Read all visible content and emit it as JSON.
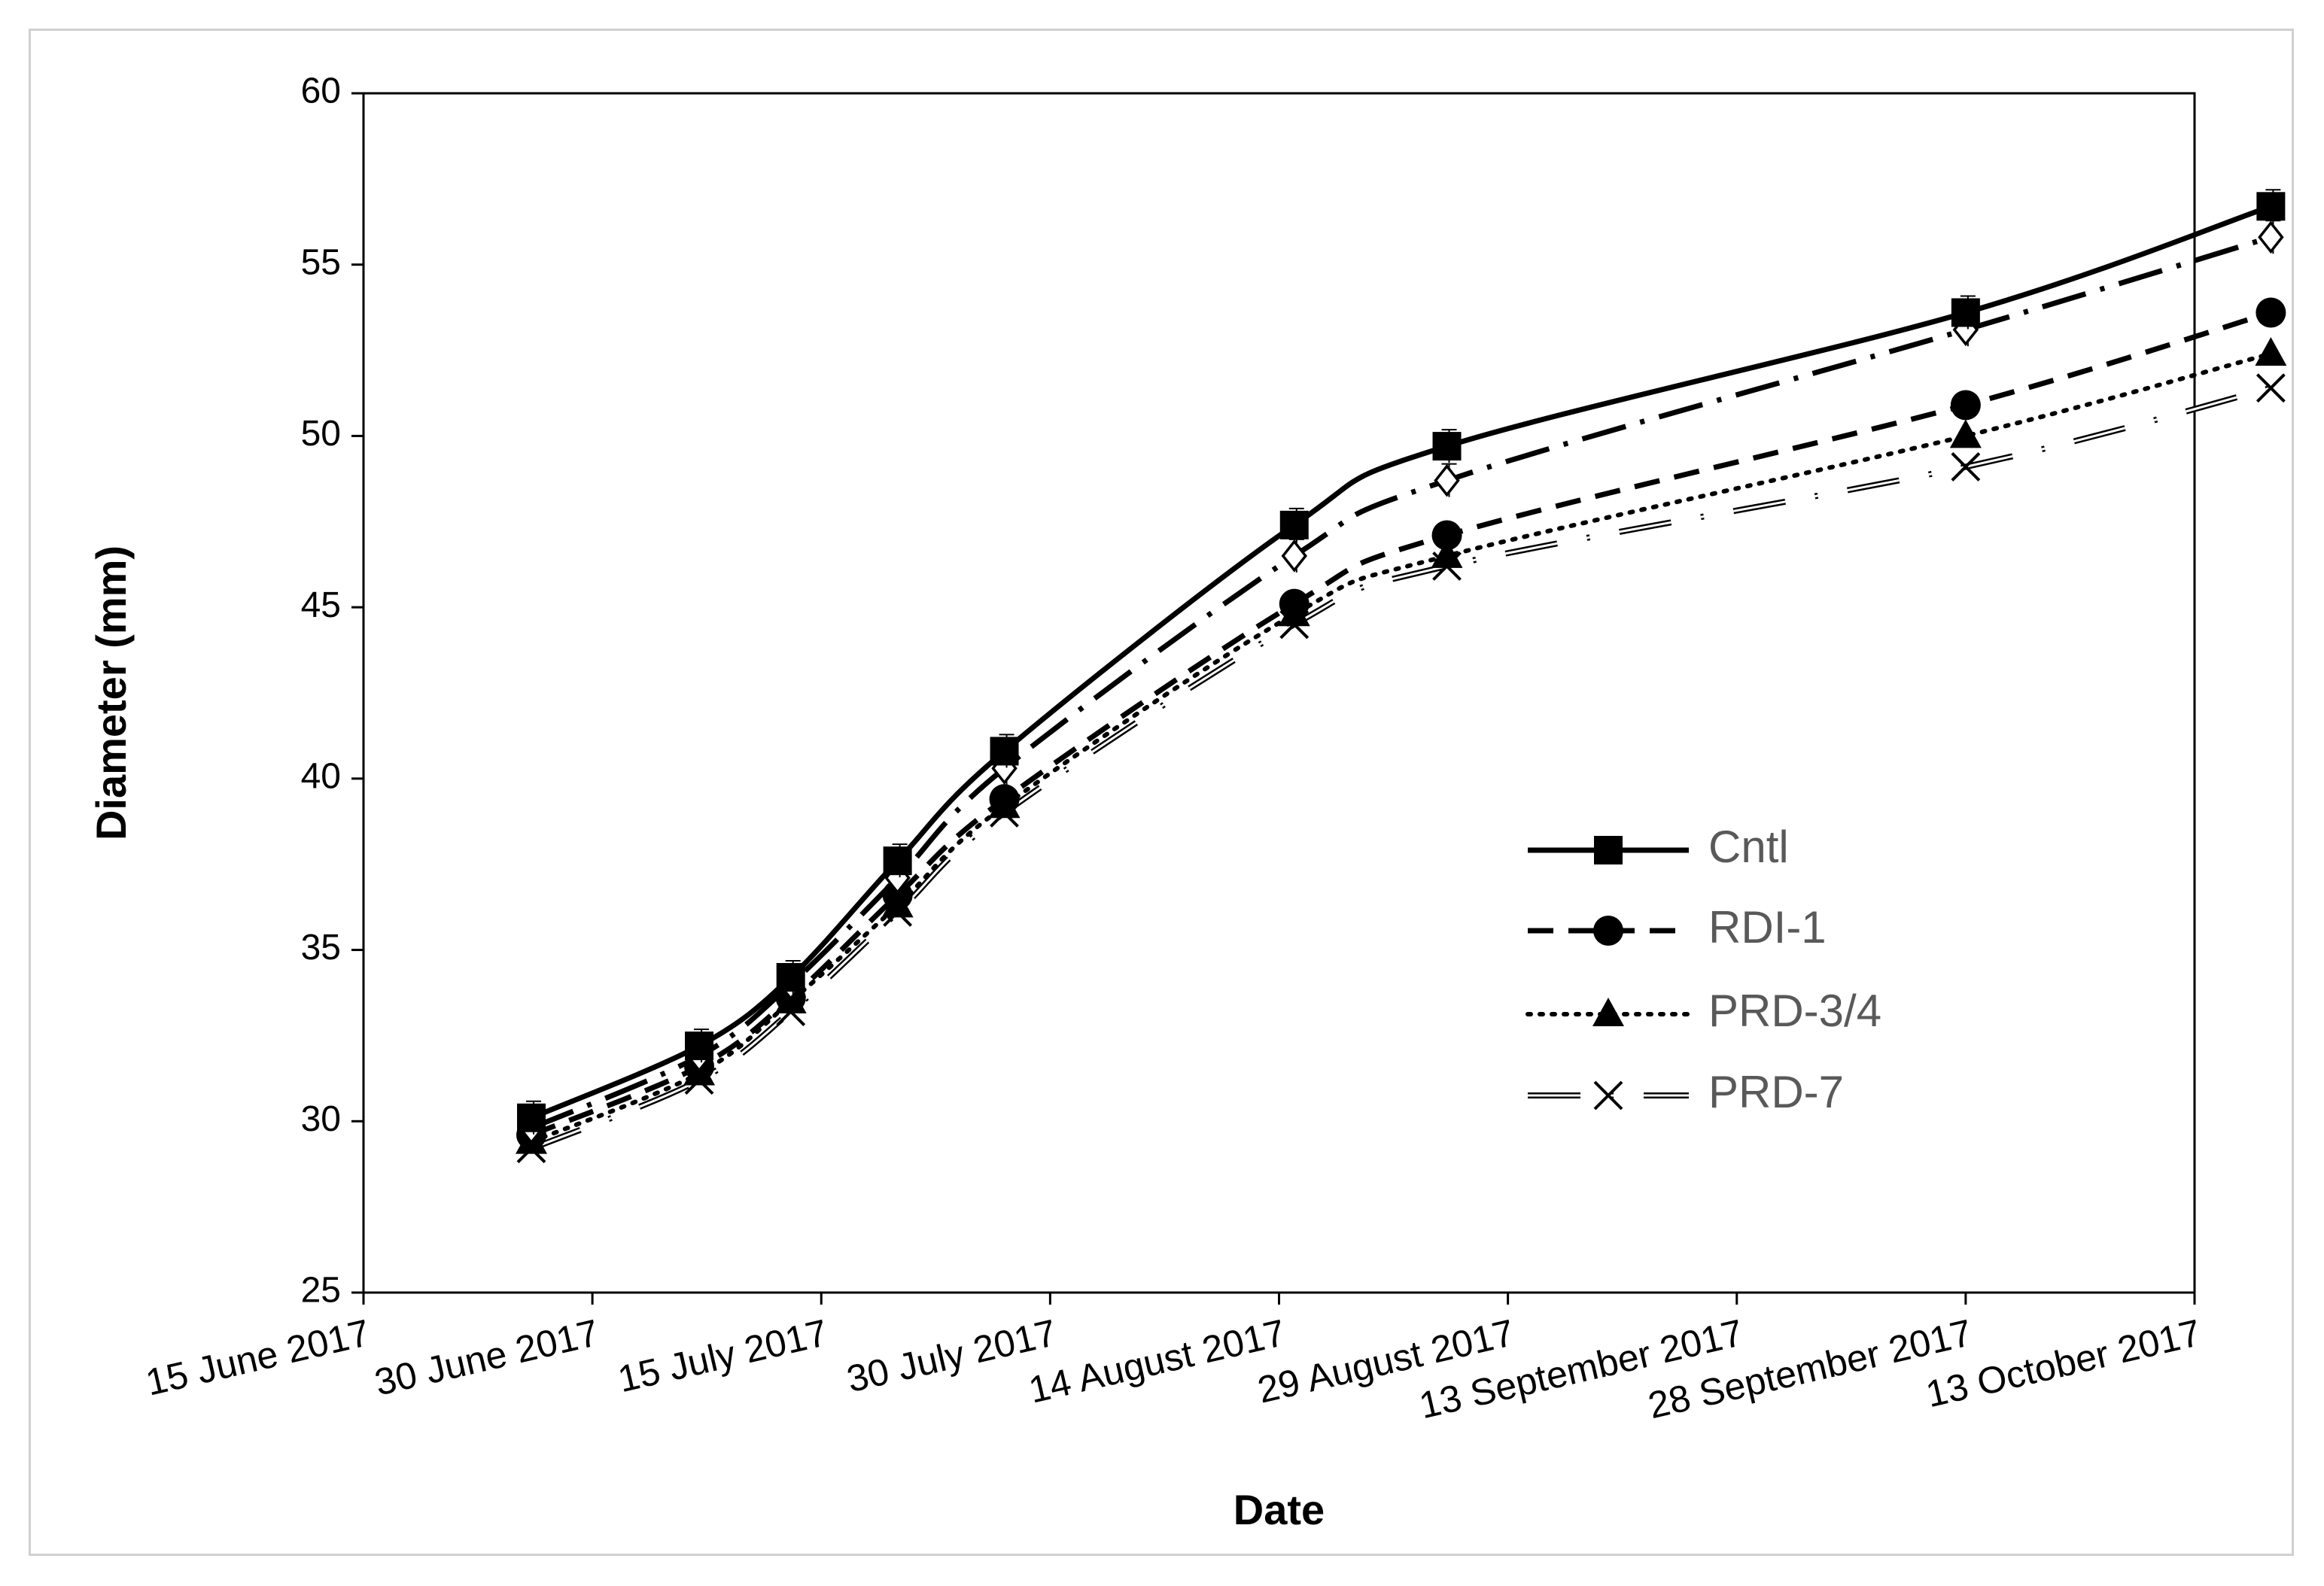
{
  "chart_data": {
    "type": "line",
    "title": "",
    "xlabel": "Date",
    "ylabel": "Diameter (mm)",
    "ylim": [
      25,
      60
    ],
    "yticks": [
      25,
      30,
      35,
      40,
      45,
      50,
      55,
      60
    ],
    "xlim": [
      "2017-06-15",
      "2017-10-13"
    ],
    "xticks": [
      {
        "date": "2017-06-15",
        "label": "15 June 2017"
      },
      {
        "date": "2017-06-30",
        "label": "30 June 2017"
      },
      {
        "date": "2017-07-15",
        "label": "15 July 2017"
      },
      {
        "date": "2017-07-30",
        "label": "30 July 2017"
      },
      {
        "date": "2017-08-14",
        "label": "14 August 2017"
      },
      {
        "date": "2017-08-29",
        "label": "29 August 2017"
      },
      {
        "date": "2017-09-13",
        "label": "13 September 2017"
      },
      {
        "date": "2017-09-28",
        "label": "28 September 2017"
      },
      {
        "date": "2017-10-13",
        "label": "13 October 2017"
      }
    ],
    "x": [
      "2017-06-26",
      "2017-07-07",
      "2017-07-13",
      "2017-07-20",
      "2017-07-27",
      "2017-08-15",
      "2017-08-25",
      "2017-09-28",
      "2017-10-18"
    ],
    "series": [
      {
        "name": "Cntl",
        "marker": "square",
        "line": "solid",
        "values": [
          30.1,
          32.2,
          34.2,
          37.6,
          40.8,
          47.4,
          49.7,
          53.6,
          56.7
        ]
      },
      {
        "name": "RDI-1",
        "marker": "circle",
        "line": "dashed",
        "values": [
          29.6,
          31.6,
          33.6,
          36.6,
          39.4,
          45.1,
          47.1,
          50.9,
          53.6
        ]
      },
      {
        "name": "PRD-3/4",
        "marker": "triangle",
        "line": "dotted",
        "values": [
          29.4,
          31.4,
          33.5,
          36.3,
          39.2,
          44.8,
          46.5,
          50.0,
          52.4
        ]
      },
      {
        "name": "PRD-7",
        "marker": "x",
        "line": "double-dot",
        "values": [
          29.2,
          31.2,
          33.2,
          36.1,
          39.0,
          44.5,
          46.2,
          49.1,
          51.4
        ]
      },
      {
        "name": "",
        "marker": "open-diamond",
        "line": "dash-dot",
        "values": [
          29.8,
          31.9,
          34.0,
          37.1,
          40.3,
          46.5,
          48.7,
          53.1,
          55.8
        ]
      }
    ],
    "grid": false,
    "legend_position": "center-right",
    "colors": {
      "line": "#000000",
      "axis": "#000000",
      "legend_text": "#595959",
      "frame": "#d0d0d0"
    }
  }
}
